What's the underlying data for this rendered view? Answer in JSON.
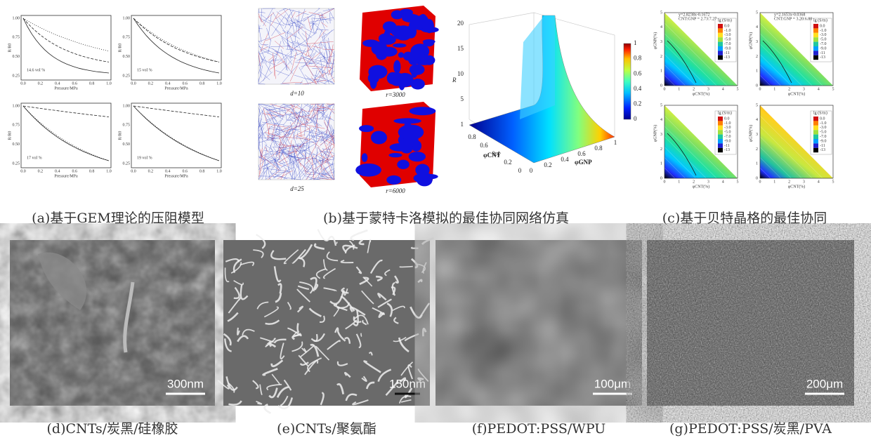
{
  "panel_a": {
    "caption": "(a)基于GEM理论的压阻模型",
    "x_label": "Pressure/MPa",
    "y_label": "R/R0",
    "x_ticks": [
      "0.0",
      "0.2",
      "0.4",
      "0.6",
      "0.8",
      "1.0"
    ],
    "y_ticks": [
      "0.25",
      "0.50",
      "0.75",
      "1.00"
    ],
    "charts": [
      {
        "note": "14.6 vol %"
      },
      {
        "note": "15 vol %"
      },
      {
        "note": "17 vol %"
      },
      {
        "note": "19 vol %"
      }
    ]
  },
  "panel_b": {
    "caption": "(b)基于蒙特卡洛模拟的最佳协同网络仿真",
    "networks": [
      {
        "label": "d=10"
      },
      {
        "label": "r=3000"
      },
      {
        "label": "d=25"
      },
      {
        "label": "r=6000"
      }
    ],
    "surface": {
      "z_label": "R",
      "z_ticks": [
        "1",
        "5",
        "10",
        "15",
        "20"
      ],
      "x_label": "φCNT",
      "x_ticks": [
        "0",
        "0.2",
        "0.4",
        "0.6",
        "0.8"
      ],
      "y_label": "φGNP",
      "y_ticks": [
        "0",
        "0.2",
        "0.4",
        "0.6",
        "0.8",
        "1"
      ],
      "colorbar_ticks": [
        "0",
        "0.2",
        "0.4",
        "0.6",
        "0.8",
        "1"
      ]
    }
  },
  "panel_c": {
    "caption": "(c)基于贝特晶格的最佳协同",
    "x_label": "φCNT(%)",
    "y_label": "φGNP(%)",
    "ticks": [
      "0",
      "1",
      "2",
      "3",
      "4",
      "5"
    ],
    "legend_title": "lg (S/m)",
    "legend_ticks": [
      "0.0",
      "-1.0",
      "-3.0",
      "-5.0",
      "-7.0",
      "-9.0",
      "-11",
      "-13"
    ],
    "fits": [
      {
        "equation": "y=2.8238x-0.1672",
        "ratio": "CNT:GNP = 2.73:7.27"
      },
      {
        "equation": "y=2.1653x-0.0368",
        "ratio": "CNT:GNP = 3.20:6.80"
      }
    ]
  },
  "sem": [
    {
      "scale": "300nm",
      "caption": "(d)CNTs/炭黑/硅橡胶"
    },
    {
      "scale": "150nm",
      "caption": "(e)CNTs/聚氨酯"
    },
    {
      "scale": "100μm",
      "caption": "(f)PEDOT:PSS/WPU"
    },
    {
      "scale": "200μm",
      "caption": "(g)PEDOT:PSS/炭黑/PVA"
    }
  ]
}
